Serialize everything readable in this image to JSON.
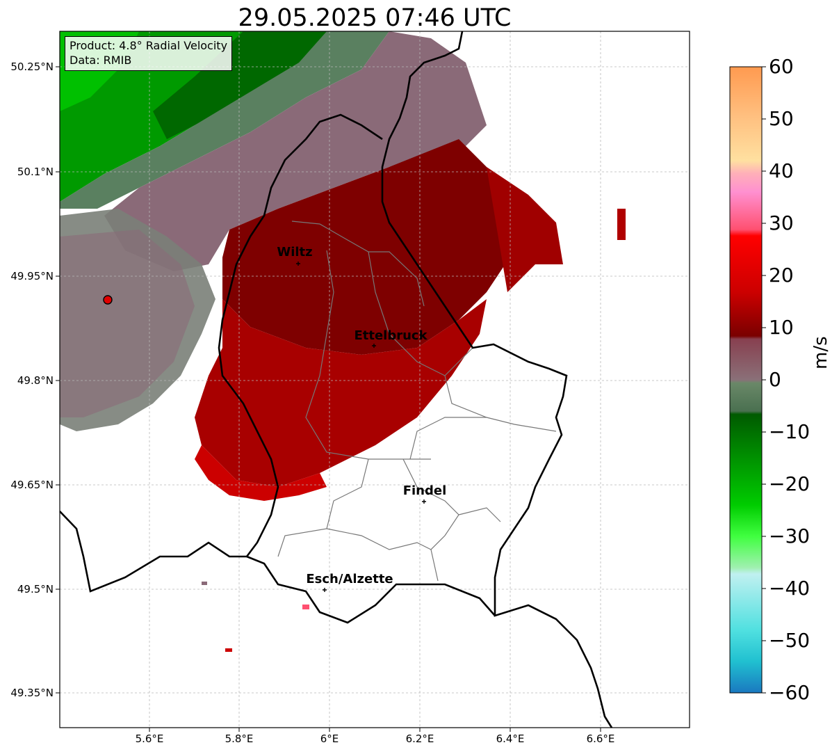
{
  "title": "29.05.2025 07:46 UTC",
  "info": {
    "product": "Product: 4.8° Radial Velocity",
    "data": "Data: RMIB"
  },
  "axes": {
    "lat_ticks": [
      "50.25°N",
      "50.1°N",
      "49.95°N",
      "49.8°N",
      "49.65°N",
      "49.5°N",
      "49.35°N"
    ],
    "lon_ticks": [
      "5.6°E",
      "5.8°E",
      "6°E",
      "6.2°E",
      "6.4°E",
      "6.6°E"
    ],
    "grid": true
  },
  "places": [
    {
      "name": "Wiltz"
    },
    {
      "name": "Ettelbruck"
    },
    {
      "name": "Findel"
    },
    {
      "name": "Esch/Alzette"
    }
  ],
  "radar_site": {
    "color": "#e00000"
  },
  "colorbar": {
    "label": "m/s",
    "ticks": [
      "60",
      "50",
      "40",
      "30",
      "20",
      "10",
      "0",
      "−10",
      "−20",
      "−30",
      "−40",
      "−50",
      "−60"
    ],
    "range": [
      -60,
      60
    ],
    "colors": {
      "pos_high": "#ff9a50",
      "pink": "#ff80c0",
      "red_bright": "#ff0000",
      "red_dark": "#7a0000",
      "mauve": "#8a6070",
      "neutral_green": "#5a8060",
      "green_dark": "#006400",
      "green_bright": "#00ee00",
      "cyan": "#30e0e0",
      "blue": "#2080c0"
    }
  }
}
